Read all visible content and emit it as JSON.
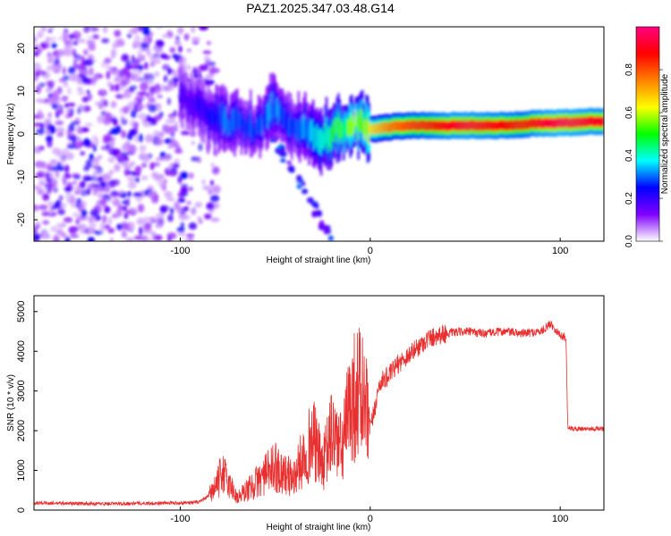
{
  "title": "PAZ1.2025.347.03.48.G14",
  "chart_data": [
    {
      "type": "heatmap",
      "xlabel": "Height of straight line (km)",
      "ylabel": "Frequency (Hz)",
      "xlim": [
        -177,
        123
      ],
      "ylim": [
        -25,
        25
      ],
      "xticks": [
        -100,
        0,
        100
      ],
      "yticks": [
        -20,
        -10,
        0,
        10,
        20
      ],
      "ridge": {
        "x": [
          -100,
          -90,
          -85,
          -80,
          -75,
          -70,
          -65,
          -60,
          -55,
          -50,
          -45,
          -40,
          -35,
          -30,
          -25,
          -20,
          -15,
          -10,
          -5,
          0,
          5,
          10,
          20,
          30,
          40,
          50,
          60,
          70,
          80,
          90,
          100,
          110,
          123
        ],
        "freq": [
          9,
          6,
          4,
          3.5,
          3,
          2.5,
          1.5,
          1,
          4,
          6,
          4,
          2,
          1,
          0,
          -1,
          0,
          1.5,
          2,
          3,
          1,
          1.3,
          1.6,
          2,
          2,
          2,
          2,
          2,
          2,
          2.2,
          2.5,
          2.6,
          2.8,
          3
        ],
        "amplitude": [
          0.2,
          0.22,
          0.25,
          0.3,
          0.32,
          0.3,
          0.28,
          0.3,
          0.32,
          0.35,
          0.3,
          0.28,
          0.35,
          0.4,
          0.45,
          0.5,
          0.55,
          0.6,
          0.55,
          0.65,
          0.7,
          0.75,
          0.8,
          0.85,
          0.9,
          0.92,
          0.9,
          0.88,
          0.85,
          0.92,
          0.95,
          0.93,
          0.9
        ]
      },
      "colorbar": {
        "label": "Normalized spectral amplitude",
        "range": [
          0,
          1
        ],
        "ticks": [
          "0.0",
          "0.2",
          "0.4",
          "0.6",
          "0.8"
        ],
        "colors": [
          "#ffffff",
          "#8000ff",
          "#0000ff",
          "#00ffff",
          "#00ff00",
          "#ffff00",
          "#ff8000",
          "#ff0000",
          "#ff0080"
        ]
      }
    },
    {
      "type": "line",
      "xlabel": "Height of straight line (km)",
      "ylabel": "SNR (10 * v/v)",
      "xlim": [
        -177,
        123
      ],
      "ylim": [
        0,
        5400
      ],
      "xticks": [
        -100,
        0,
        100
      ],
      "yticks": [
        0,
        1000,
        2000,
        3000,
        4000,
        5000
      ],
      "color": "#e83030",
      "series": [
        {
          "name": "SNR",
          "x": [
            -177,
            -160,
            -140,
            -120,
            -100,
            -90,
            -85,
            -80,
            -78,
            -75,
            -72,
            -70,
            -65,
            -60,
            -55,
            -50,
            -45,
            -40,
            -35,
            -30,
            -25,
            -20,
            -15,
            -10,
            -5,
            0,
            5,
            10,
            15,
            20,
            25,
            30,
            35,
            40,
            50,
            60,
            70,
            80,
            90,
            95,
            100,
            103,
            104,
            106,
            110,
            115,
            123
          ],
          "y": [
            180,
            170,
            160,
            170,
            180,
            200,
            350,
            700,
            1000,
            700,
            500,
            300,
            500,
            700,
            900,
            1100,
            900,
            800,
            1400,
            1800,
            1100,
            2000,
            1500,
            2800,
            3000,
            2000,
            3200,
            3400,
            3700,
            3900,
            4100,
            4300,
            4400,
            4450,
            4500,
            4450,
            4500,
            4450,
            4500,
            4700,
            4400,
            4350,
            2100,
            2050,
            2050,
            2050,
            2050
          ]
        }
      ]
    }
  ]
}
